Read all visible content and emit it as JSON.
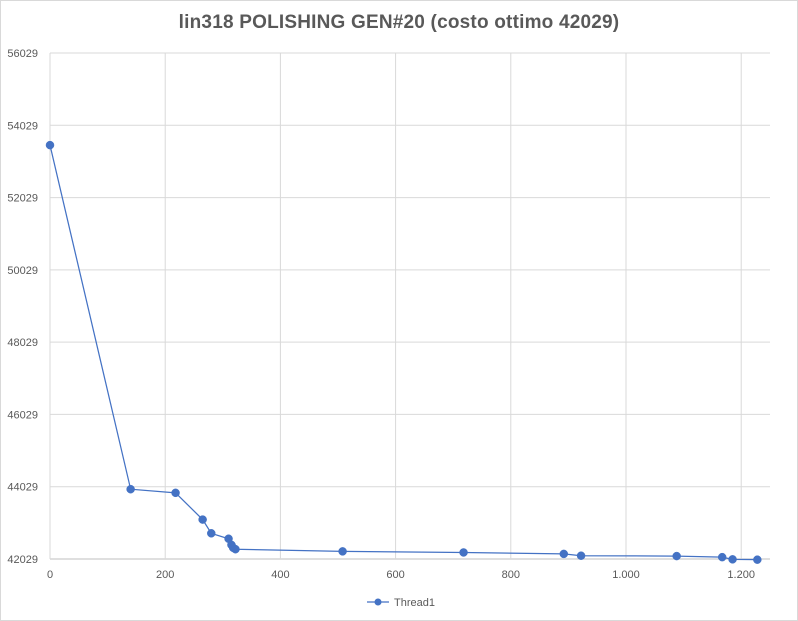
{
  "chart_data": {
    "type": "scatter",
    "title": "lin318 POLISHING GEN#20 (costo ottimo 42029)",
    "xlabel": "",
    "ylabel": "",
    "x_ticks": [
      "0",
      "200",
      "400",
      "600",
      "800",
      "1.000",
      "1.200"
    ],
    "y_ticks": [
      "42029",
      "44029",
      "46029",
      "48029",
      "50029",
      "52029",
      "54029",
      "56029"
    ],
    "xlim": [
      0,
      1250
    ],
    "ylim": [
      42029,
      56029
    ],
    "grid": true,
    "legend_position": "bottom",
    "series": [
      {
        "name": "Thread1",
        "color": "#4472c4",
        "points": [
          [
            0,
            53480
          ],
          [
            140,
            43960
          ],
          [
            218,
            43860
          ],
          [
            265,
            43120
          ],
          [
            280,
            42740
          ],
          [
            310,
            42590
          ],
          [
            315,
            42420
          ],
          [
            318,
            42340
          ],
          [
            322,
            42300
          ],
          [
            508,
            42240
          ],
          [
            718,
            42210
          ],
          [
            892,
            42170
          ],
          [
            922,
            42120
          ],
          [
            1088,
            42110
          ],
          [
            1167,
            42080
          ],
          [
            1185,
            42020
          ],
          [
            1228,
            42010
          ]
        ]
      }
    ]
  }
}
